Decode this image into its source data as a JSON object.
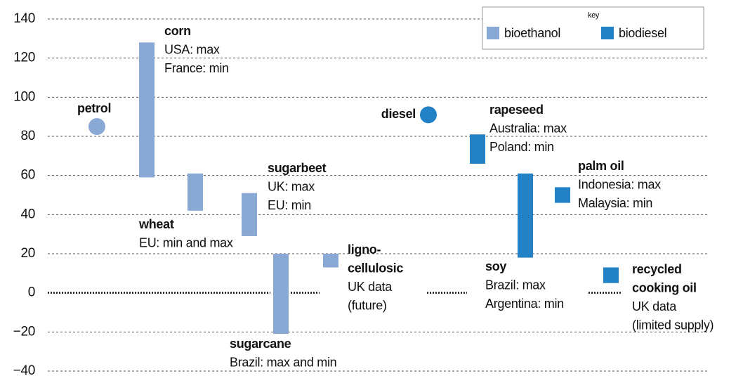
{
  "chart_data": {
    "type": "range_bar",
    "ylim": [
      -40,
      140
    ],
    "yticks": [
      {
        "value": -40,
        "label": "−40"
      },
      {
        "value": -20,
        "label": "−20"
      },
      0,
      20,
      40,
      60,
      80,
      100,
      120,
      140
    ],
    "grid": true,
    "legend": {
      "title": "key",
      "position": "top-right"
    },
    "series": [
      {
        "name": "bioethanol",
        "color": "#89a8d3"
      },
      {
        "name": "biodiesel",
        "color": "#2382c5"
      }
    ],
    "items": [
      {
        "label": [
          "petrol"
        ],
        "series": 0,
        "value": 85
      },
      {
        "label": [
          "corn"
        ],
        "notes": [
          "USA: max",
          "France: min"
        ],
        "series": 0,
        "min": 59,
        "max": 128
      },
      {
        "label": [
          "wheat"
        ],
        "notes": [
          "EU: min and max"
        ],
        "series": 0,
        "min": 42,
        "max": 61
      },
      {
        "label": [
          "sugarbeet"
        ],
        "notes": [
          "UK: max",
          "EU: min"
        ],
        "series": 0,
        "min": 29,
        "max": 51
      },
      {
        "label": [
          "sugarcane"
        ],
        "notes": [
          "Brazil: max and min"
        ],
        "series": 0,
        "min": -21,
        "max": 20
      },
      {
        "label": [
          "ligno-",
          "cellulosic"
        ],
        "notes": [
          "UK data",
          "(future)"
        ],
        "series": 0,
        "min": 13,
        "max": 20
      },
      {
        "label": [
          "diesel"
        ],
        "series": 1,
        "value": 91
      },
      {
        "label": [
          "rapeseed"
        ],
        "notes": [
          "Australia: max",
          "Poland: min"
        ],
        "series": 1,
        "min": 66,
        "max": 81
      },
      {
        "label": [
          "soy"
        ],
        "notes": [
          "Brazil: max",
          "Argentina: min"
        ],
        "series": 1,
        "min": 18,
        "max": 61
      },
      {
        "label": [
          "palm oil"
        ],
        "notes": [
          "Indonesia: max",
          "Malaysia: min"
        ],
        "series": 1,
        "min": 46,
        "max": 54
      },
      {
        "label": [
          "recycled",
          "cooking oil"
        ],
        "notes": [
          "UK data",
          "(limited supply)"
        ],
        "series": 1,
        "min": 5,
        "max": 13
      }
    ]
  }
}
